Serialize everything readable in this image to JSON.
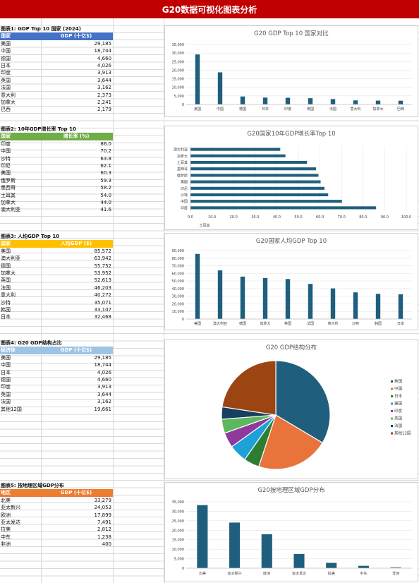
{
  "banner": {
    "title": "G20数据可视化图表分析"
  },
  "colors": {
    "banner": "#c00000",
    "bar": "#1f5f7d",
    "header1": "#4472c4",
    "header2": "#70ad47",
    "header3": "#ffc000",
    "header4": "#9dc3e6",
    "header5": "#ed7d31"
  },
  "tables": [
    {
      "title": "图表1: GDP Top 10 国家 (2024)",
      "headers": [
        "国家",
        "GDP (十亿$)"
      ],
      "header_color": "#4472c4",
      "rows": [
        [
          "美国",
          "29,185"
        ],
        [
          "中国",
          "18,744"
        ],
        [
          "德国",
          "4,660"
        ],
        [
          "日本",
          "4,026"
        ],
        [
          "印度",
          "3,913"
        ],
        [
          "英国",
          "3,644"
        ],
        [
          "法国",
          "3,162"
        ],
        [
          "意大利",
          "2,373"
        ],
        [
          "加拿大",
          "2,241"
        ],
        [
          "巴西",
          "2,179"
        ]
      ]
    },
    {
      "title": "图表2: 10年GDP增长率 Top 10",
      "headers": [
        "国家",
        "增长率 (%)"
      ],
      "header_color": "#70ad47",
      "rows": [
        [
          "印度",
          "86.0"
        ],
        [
          "中国",
          "70.2"
        ],
        [
          "沙特",
          "63.8"
        ],
        [
          "印尼",
          "62.1"
        ],
        [
          "美国",
          "60.3"
        ],
        [
          "俄罗斯",
          "59.3"
        ],
        [
          "墨西哥",
          "58.2"
        ],
        [
          "土耳其",
          "54.0"
        ],
        [
          "加拿大",
          "44.0"
        ],
        [
          "澳大利亚",
          "41.6"
        ]
      ]
    },
    {
      "title": "图表3: 人均GDP Top 10",
      "headers": [
        "国家",
        "人均GDP ($)"
      ],
      "header_color": "#ffc000",
      "rows": [
        [
          "美国",
          "85,572"
        ],
        [
          "澳大利亚",
          "63,942"
        ],
        [
          "德国",
          "55,752"
        ],
        [
          "加拿大",
          "53,952"
        ],
        [
          "英国",
          "52,613"
        ],
        [
          "法国",
          "46,203"
        ],
        [
          "意大利",
          "40,272"
        ],
        [
          "沙特",
          "35,071"
        ],
        [
          "韩国",
          "33,107"
        ],
        [
          "日本",
          "32,468"
        ]
      ]
    },
    {
      "title": "图表4: G20 GDP结构占比",
      "headers": [
        "经济体",
        "GDP (十亿$)"
      ],
      "header_color": "#9dc3e6",
      "rows": [
        [
          "美国",
          "29,185"
        ],
        [
          "中国",
          "18,744"
        ],
        [
          "日本",
          "4,026"
        ],
        [
          "德国",
          "4,660"
        ],
        [
          "印度",
          "3,913"
        ],
        [
          "英国",
          "3,644"
        ],
        [
          "法国",
          "3,162"
        ],
        [
          "其他12国",
          "19,661"
        ]
      ]
    },
    {
      "title": "图表5: 按地理区域GDP分布",
      "headers": [
        "地区",
        "GDP (十亿$)"
      ],
      "header_color": "#ed7d31",
      "rows": [
        [
          "北美",
          "33,279"
        ],
        [
          "亚太新兴",
          "24,053"
        ],
        [
          "欧洲",
          "17,899"
        ],
        [
          "亚太发达",
          "7,491"
        ],
        [
          "拉美",
          "2,812"
        ],
        [
          "中东",
          "1,238"
        ],
        [
          "非洲",
          "400"
        ]
      ]
    }
  ],
  "chart_data": [
    {
      "type": "bar",
      "title": "G20 GDP Top 10 国家对比",
      "categories": [
        "美国",
        "中国",
        "德国",
        "日本",
        "印度",
        "英国",
        "法国",
        "意大利",
        "加拿大",
        "巴西"
      ],
      "values": [
        29185,
        18744,
        4660,
        4026,
        3913,
        3644,
        3162,
        2373,
        2241,
        2179
      ],
      "ylim": [
        0,
        35000
      ],
      "yticks": [
        "0",
        "5,000",
        "10,000",
        "15,000",
        "20,000",
        "25,000",
        "30,000",
        "35,000"
      ]
    },
    {
      "type": "bar",
      "orientation": "horizontal",
      "title": "G20国家10年GDP增长率Top 10",
      "categories": [
        "印度",
        "中国",
        "沙特",
        "印尼",
        "美国",
        "俄罗斯",
        "墨西哥",
        "土耳其",
        "加拿大",
        "澳大利亚"
      ],
      "values": [
        86.0,
        70.2,
        63.8,
        62.1,
        60.3,
        59.3,
        58.2,
        54.0,
        44.0,
        41.6
      ],
      "xlim": [
        0,
        100
      ],
      "xticks": [
        "0.0",
        "10.0",
        "20.0",
        "30.0",
        "40.0",
        "50.0",
        "60.0",
        "70.0",
        "80.0",
        "90.0",
        "100.0"
      ],
      "stray_label": "土耳其"
    },
    {
      "type": "bar",
      "title": "G20国家人均GDP Top 10",
      "categories": [
        "美国",
        "澳大利亚",
        "德国",
        "加拿大",
        "英国",
        "法国",
        "意大利",
        "沙特",
        "韩国",
        "日本"
      ],
      "values": [
        85572,
        63942,
        55752,
        53952,
        52613,
        46203,
        40272,
        35071,
        33107,
        32468
      ],
      "ylim": [
        0,
        90000
      ],
      "yticks": [
        "0",
        "10,000",
        "20,000",
        "30,000",
        "40,000",
        "50,000",
        "60,000",
        "70,000",
        "80,000",
        "90,000"
      ]
    },
    {
      "type": "pie",
      "title": "G20 GDP结构分布",
      "categories": [
        "美国",
        "中国",
        "日本",
        "德国",
        "印度",
        "英国",
        "法国",
        "其他12国"
      ],
      "values": [
        29185,
        18744,
        4026,
        4660,
        3913,
        3644,
        3162,
        19661
      ],
      "colors": [
        "#1f5f7d",
        "#e8743b",
        "#2e7d32",
        "#1ea0d8",
        "#8e3a9d",
        "#5cb85c",
        "#173f5f",
        "#9c4412"
      ],
      "legend": "right"
    },
    {
      "type": "bar",
      "title": "G20按地理区域GDP分布",
      "categories": [
        "北美",
        "亚太新兴",
        "欧洲",
        "亚太发达",
        "拉美",
        "中东",
        "非洲"
      ],
      "values": [
        33279,
        24053,
        17899,
        7491,
        2812,
        1238,
        400
      ],
      "ylim": [
        0,
        35000
      ],
      "yticks": [
        "0",
        "5,000",
        "10,000",
        "15,000",
        "20,000",
        "25,000",
        "30,000",
        "35,000"
      ]
    }
  ]
}
